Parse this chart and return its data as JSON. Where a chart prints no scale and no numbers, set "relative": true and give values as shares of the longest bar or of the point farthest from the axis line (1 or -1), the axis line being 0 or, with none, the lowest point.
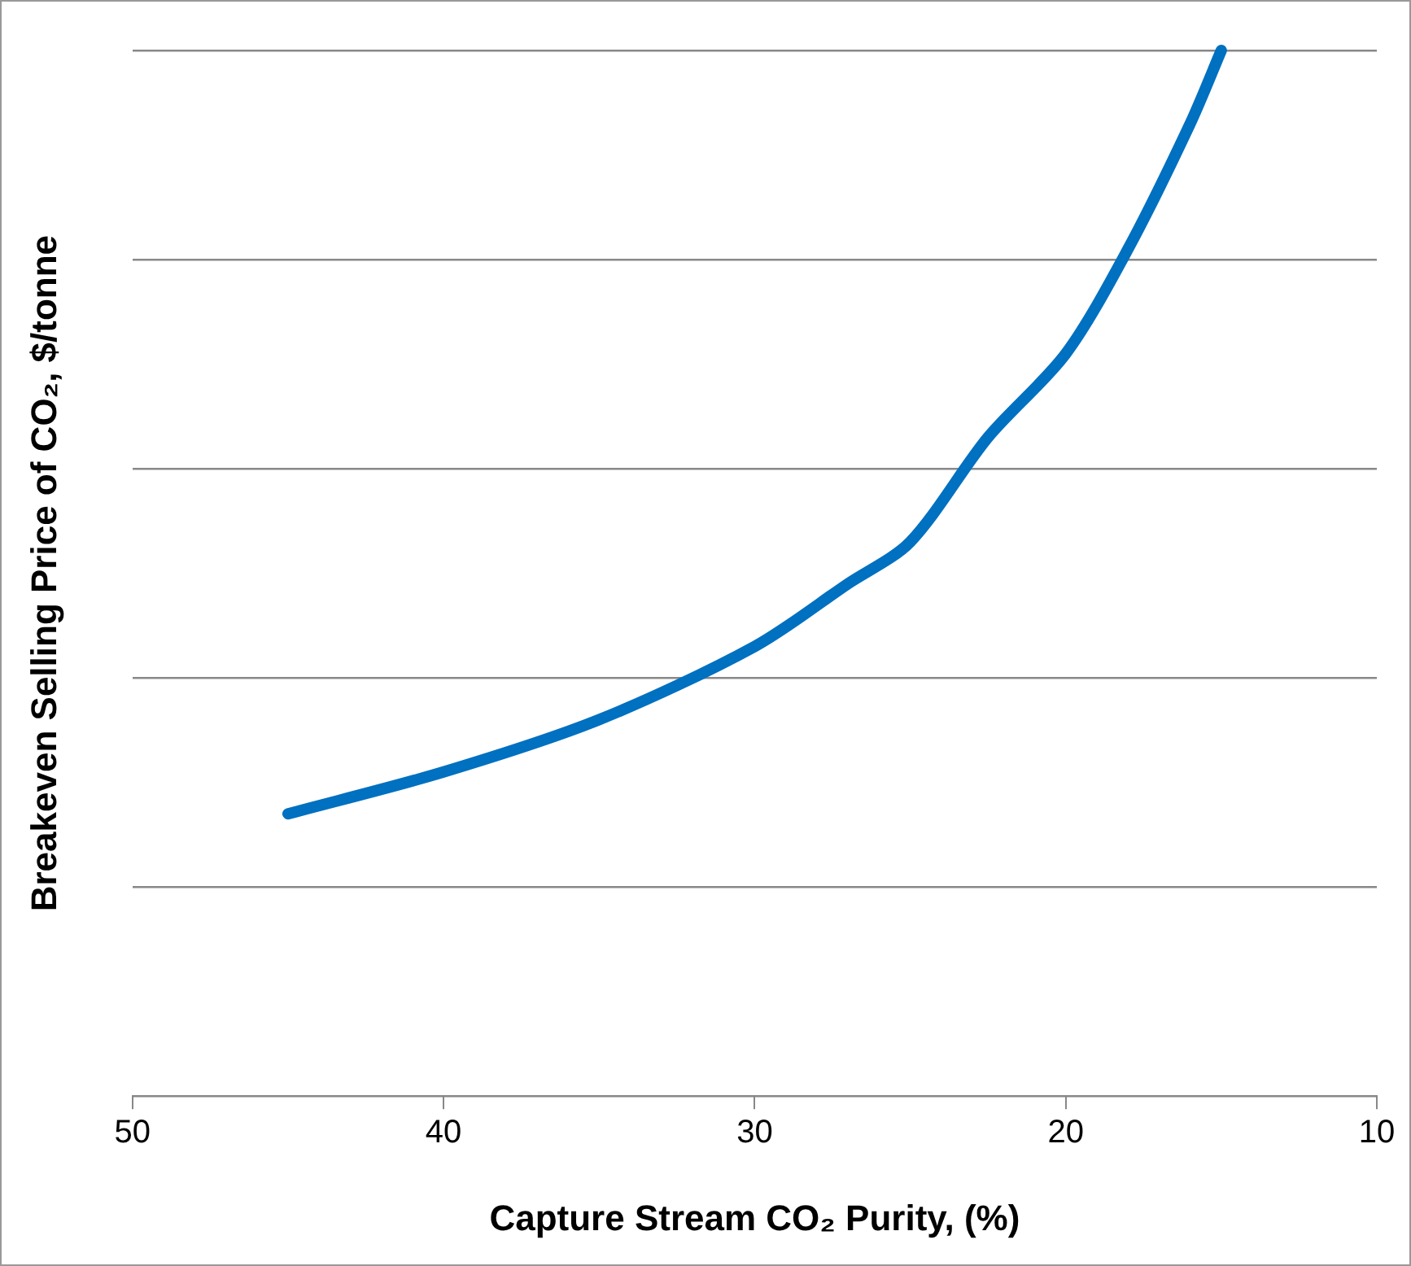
{
  "chart_data": {
    "type": "line",
    "xlabel": "Capture Stream CO₂ Purity, (%)",
    "ylabel": "Breakeven Selling Price of CO₂, $/tonne",
    "relative": true,
    "x": [
      45,
      40,
      35,
      30,
      27,
      25,
      22.5,
      20,
      18,
      16,
      15
    ],
    "series": [
      {
        "color": "#0070c0",
        "values": [
          0.27,
          0.31,
          0.36,
          0.43,
          0.49,
          0.53,
          0.63,
          0.71,
          0.81,
          0.93,
          1
        ]
      }
    ],
    "xlim": [
      50,
      10
    ],
    "xticks": [
      50,
      40,
      30,
      20,
      10
    ],
    "grid": "y",
    "legend": false,
    "marker": "none",
    "line_style": "solid"
  }
}
